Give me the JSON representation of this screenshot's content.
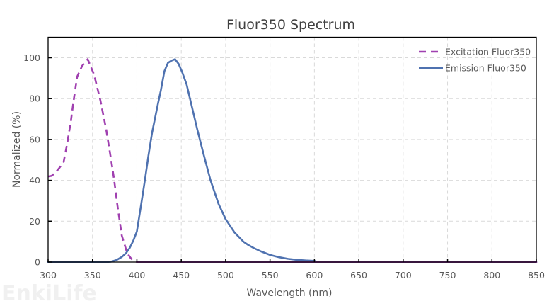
{
  "chart_data": {
    "type": "line",
    "title": "Fluor350  Spectrum",
    "xlabel": "Wavelength (nm)",
    "ylabel": "Normalized (%)",
    "xlim": [
      300,
      850
    ],
    "ylim": [
      0,
      110
    ],
    "x_ticks": [
      300,
      350,
      400,
      450,
      500,
      550,
      600,
      650,
      700,
      750,
      800,
      850
    ],
    "y_ticks": [
      0,
      20,
      40,
      60,
      80,
      100
    ],
    "grid": true,
    "legend_position": "upper right",
    "series": [
      {
        "name": "Excitation Fluor350",
        "color": "#A040B0",
        "style": "dashed",
        "x": [
          300,
          304,
          308,
          312,
          317.5,
          321.5,
          325.5,
          328.7,
          332.7,
          338.3,
          344.6,
          351.8,
          359,
          365.4,
          371,
          374.2,
          378,
          383,
          389,
          393,
          396,
          400,
          403,
          500,
          600,
          700,
          850
        ],
        "y": [
          41.9,
          42.2,
          43.8,
          45.7,
          49,
          58,
          68.5,
          78.9,
          90.7,
          96,
          99.3,
          91.7,
          78.9,
          65,
          50,
          40.8,
          28,
          13,
          4.5,
          2,
          0.8,
          0,
          0,
          0,
          0,
          0,
          0
        ]
      },
      {
        "name": "Emission Fluor350",
        "color": "#4F72B0",
        "style": "solid",
        "x": [
          300,
          350,
          365,
          371,
          377,
          383,
          388,
          392,
          396,
          400,
          405,
          409,
          413,
          417,
          421,
          424,
          427,
          431,
          435,
          439,
          443,
          447,
          451,
          456,
          462,
          468,
          475,
          483,
          492,
          500,
          510,
          520,
          525,
          532,
          540,
          550,
          560,
          570,
          580,
          590,
          600,
          603,
          650,
          700,
          750,
          800,
          850
        ],
        "y": [
          0,
          0,
          0,
          0.2,
          1,
          2.5,
          4.5,
          7,
          10.5,
          15,
          28.7,
          40,
          52,
          63,
          71.6,
          78,
          84,
          93.4,
          97.5,
          98.6,
          99.3,
          97,
          93,
          87,
          76,
          65,
          53,
          40,
          28.5,
          21,
          14.5,
          10,
          8.5,
          6.8,
          5.2,
          3.5,
          2.4,
          1.6,
          1.1,
          0.8,
          0.6,
          0.1,
          0,
          0,
          0,
          0,
          0
        ]
      }
    ]
  },
  "watermark": "EnkiLife"
}
